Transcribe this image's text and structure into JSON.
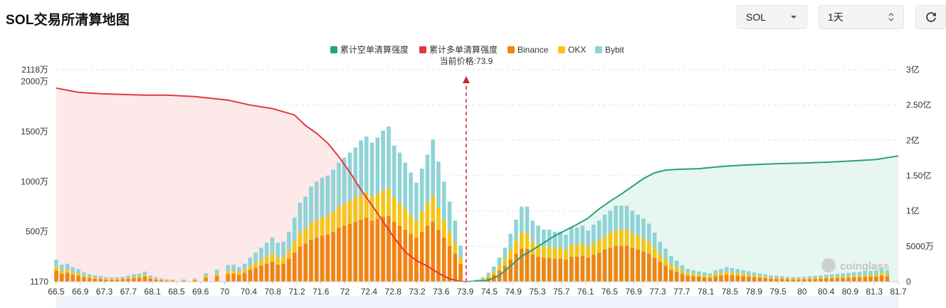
{
  "header": {
    "title": "SOL交易所清算地图",
    "coin_select": "SOL",
    "period_select": "1天"
  },
  "icons": {
    "caret": "caret-down-icon",
    "updown": "updown-icon",
    "refresh": "refresh-icon"
  },
  "colors": {
    "short_cum": "#26a17b",
    "long_cum": "#e0393e",
    "binance": "#f0850f",
    "okx": "#f5c518",
    "bybit": "#8fd3d6",
    "price_marker": "#d0232a"
  },
  "chart_data": {
    "type": "bar",
    "title": "",
    "current_price_label": "当前价格:73.9",
    "current_price": 73.9,
    "legend": [
      "累计空单清算强度",
      "累计多单清算强度",
      "Binance",
      "OKX",
      "Bybit"
    ],
    "x_tick_labels": [
      "66.5",
      "66.9",
      "67.3",
      "67.7",
      "68.1",
      "68.5",
      "69.6",
      "70",
      "70.4",
      "70.8",
      "71.2",
      "71.6",
      "72",
      "72.4",
      "72.8",
      "73.2",
      "73.6",
      "73.9",
      "74.5",
      "74.9",
      "75.3",
      "75.7",
      "76.1",
      "76.5",
      "76.9",
      "77.3",
      "77.7",
      "78.1",
      "78.5",
      "78.9",
      "79.5",
      "80",
      "80.4",
      "80.9",
      "81.3",
      "81.7"
    ],
    "left_axis": {
      "ticks": [
        "1170",
        "500万",
        "1000万",
        "1500万",
        "2000万",
        "2118万"
      ],
      "range": [
        1170,
        21180000
      ]
    },
    "right_axis": {
      "ticks": [
        "0",
        "5000万",
        "1亿",
        "1.50亿",
        "2亿",
        "2.50亿",
        "3亿"
      ],
      "range": [
        0,
        300000000
      ]
    },
    "watermark": "coinglass",
    "long_cumulative_curve": {
      "name": "累计多单清算强度",
      "x": [
        66.5,
        66.9,
        67.3,
        67.7,
        68.1,
        68.5,
        69.0,
        69.6,
        70.0,
        70.4,
        70.8,
        71.0,
        71.2,
        71.4,
        71.6,
        71.8,
        72.0,
        72.2,
        72.4,
        72.6,
        72.8,
        73.0,
        73.2,
        73.4,
        73.6,
        73.8,
        73.9
      ],
      "y": [
        274000000.0,
        268000000.0,
        266000000.0,
        265000000.0,
        264000000.0,
        264000000.0,
        262000000.0,
        257000000.0,
        250000000.0,
        245000000.0,
        236000000.0,
        221000000.0,
        210000000.0,
        196000000.0,
        177000000.0,
        155000000.0,
        130000000.0,
        108000000.0,
        85000000.0,
        62000000.0,
        42000000.0,
        30000000.0,
        22000000.0,
        12000000.0,
        4000000.0,
        500000.0,
        0
      ]
    },
    "short_cumulative_curve": {
      "name": "累计空单清算强度",
      "x": [
        73.9,
        74.3,
        74.5,
        74.7,
        74.9,
        75.1,
        75.3,
        75.5,
        75.7,
        75.9,
        76.1,
        76.3,
        76.5,
        76.7,
        76.9,
        77.1,
        77.3,
        77.5,
        77.7,
        78.1,
        78.5,
        78.9,
        79.5,
        80.0,
        80.4,
        80.9,
        81.3,
        81.7
      ],
      "y": [
        0,
        2000000.0,
        9000000.0,
        22000000.0,
        36000000.0,
        45000000.0,
        55000000.0,
        65000000.0,
        73000000.0,
        81000000.0,
        90000000.0,
        103000000.0,
        114000000.0,
        124000000.0,
        135000000.0,
        146000000.0,
        154000000.0,
        158000000.0,
        159000000.0,
        160000000.0,
        163000000.0,
        165000000.0,
        167000000.0,
        168000000.0,
        169000000.0,
        171000000.0,
        173000000.0,
        178000000.0
      ]
    },
    "bars": {
      "note_units": "total liquidation per price level (left axis), split by exchange",
      "x": [
        66.5,
        66.6,
        66.7,
        66.8,
        66.9,
        67.0,
        67.1,
        67.2,
        67.3,
        67.4,
        67.5,
        67.6,
        67.7,
        67.8,
        67.9,
        68.0,
        68.1,
        68.2,
        68.3,
        68.4,
        68.5,
        68.6,
        68.8,
        69.0,
        69.2,
        69.4,
        69.6,
        69.7,
        69.8,
        69.9,
        70.0,
        70.1,
        70.2,
        70.3,
        70.4,
        70.5,
        70.6,
        70.7,
        70.8,
        70.9,
        71.0,
        71.1,
        71.2,
        71.3,
        71.4,
        71.5,
        71.6,
        71.7,
        71.8,
        71.9,
        72.0,
        72.1,
        72.2,
        72.3,
        72.4,
        72.5,
        72.6,
        72.7,
        72.8,
        72.9,
        73.0,
        73.1,
        73.2,
        73.3,
        73.4,
        73.5,
        73.6,
        73.7,
        73.8,
        73.9,
        74.0,
        74.1,
        74.2,
        74.3,
        74.4,
        74.5,
        74.6,
        74.7,
        74.8,
        74.9,
        75.0,
        75.1,
        75.2,
        75.3,
        75.4,
        75.5,
        75.6,
        75.7,
        75.8,
        75.9,
        76.0,
        76.1,
        76.2,
        76.3,
        76.4,
        76.5,
        76.6,
        76.7,
        76.8,
        76.9,
        77.0,
        77.1,
        77.2,
        77.3,
        77.4,
        77.5,
        77.6,
        77.7,
        77.8,
        77.9,
        78.0,
        78.1,
        78.2,
        78.3,
        78.4,
        78.5,
        78.6,
        78.7,
        78.8,
        78.9,
        79.0,
        79.1,
        79.2,
        79.3,
        79.4,
        79.5,
        79.6,
        79.7,
        79.8,
        79.9,
        80.0,
        80.1,
        80.2,
        80.3,
        80.4,
        80.5,
        80.6,
        80.7,
        80.8,
        80.9,
        81.0,
        81.1,
        81.2,
        81.3,
        81.4,
        81.5,
        81.6,
        81.7
      ],
      "binance": [
        110,
        80,
        90,
        70,
        60,
        45,
        35,
        30,
        25,
        20,
        20,
        20,
        25,
        30,
        35,
        40,
        50,
        30,
        20,
        15,
        10,
        10,
        10,
        15,
        40,
        60,
        75,
        80,
        70,
        90,
        120,
        140,
        160,
        180,
        200,
        170,
        180,
        230,
        290,
        350,
        380,
        420,
        440,
        460,
        470,
        500,
        540,
        560,
        580,
        600,
        620,
        640,
        610,
        630,
        650,
        660,
        600,
        560,
        520,
        480,
        440,
        500,
        560,
        600,
        520,
        440,
        360,
        280,
        180,
        0,
        0,
        10,
        20,
        40,
        70,
        110,
        160,
        220,
        280,
        330,
        330,
        270,
        250,
        240,
        240,
        230,
        230,
        220,
        250,
        250,
        260,
        240,
        270,
        290,
        320,
        340,
        360,
        360,
        360,
        340,
        320,
        300,
        280,
        240,
        200,
        160,
        120,
        100,
        80,
        60,
        55,
        50,
        45,
        40,
        55,
        60,
        70,
        65,
        60,
        55,
        50,
        45,
        40,
        35,
        30,
        28,
        26,
        24,
        22,
        22,
        24,
        26,
        28,
        30,
        32,
        34,
        36,
        38,
        40,
        42,
        44,
        46,
        48,
        50,
        60,
        50
      ],
      "okx": [
        40,
        30,
        30,
        25,
        25,
        20,
        15,
        15,
        10,
        10,
        10,
        10,
        10,
        10,
        15,
        15,
        20,
        12,
        10,
        8,
        5,
        5,
        5,
        8,
        15,
        20,
        30,
        30,
        25,
        30,
        40,
        50,
        60,
        70,
        80,
        70,
        70,
        90,
        120,
        140,
        150,
        170,
        180,
        180,
        190,
        200,
        210,
        220,
        230,
        240,
        250,
        250,
        240,
        250,
        260,
        270,
        240,
        230,
        210,
        190,
        170,
        200,
        230,
        260,
        220,
        180,
        140,
        110,
        60,
        0,
        0,
        5,
        10,
        20,
        30,
        50,
        70,
        100,
        130,
        160,
        160,
        130,
        120,
        110,
        110,
        110,
        110,
        100,
        120,
        120,
        120,
        110,
        120,
        130,
        140,
        150,
        160,
        160,
        160,
        150,
        140,
        130,
        120,
        100,
        80,
        70,
        55,
        45,
        35,
        28,
        25,
        22,
        20,
        18,
        25,
        28,
        32,
        30,
        28,
        25,
        22,
        20,
        18,
        16,
        14,
        13,
        12,
        11,
        10,
        10,
        11,
        12,
        13,
        14,
        15,
        16,
        17,
        18,
        19,
        20,
        21,
        22,
        23,
        24,
        28,
        24
      ],
      "bybit": [
        70,
        60,
        60,
        50,
        40,
        30,
        25,
        20,
        20,
        15,
        15,
        15,
        15,
        20,
        25,
        25,
        30,
        20,
        15,
        10,
        8,
        8,
        8,
        10,
        30,
        40,
        60,
        60,
        50,
        60,
        80,
        100,
        120,
        140,
        160,
        150,
        150,
        180,
        230,
        300,
        320,
        360,
        380,
        400,
        400,
        420,
        440,
        460,
        480,
        500,
        540,
        560,
        540,
        560,
        600,
        620,
        520,
        500,
        460,
        420,
        380,
        430,
        480,
        560,
        460,
        380,
        300,
        220,
        120,
        0,
        0,
        8,
        15,
        30,
        50,
        80,
        110,
        160,
        210,
        260,
        260,
        210,
        190,
        170,
        170,
        160,
        160,
        150,
        170,
        170,
        180,
        160,
        180,
        190,
        210,
        220,
        240,
        240,
        240,
        220,
        210,
        200,
        180,
        150,
        120,
        100,
        80,
        65,
        50,
        40,
        35,
        30,
        28,
        25,
        35,
        38,
        44,
        40,
        38,
        35,
        32,
        28,
        25,
        22,
        20,
        18,
        16,
        15,
        14,
        14,
        15,
        16,
        18,
        20,
        22,
        24,
        26,
        28,
        30,
        32,
        34,
        36,
        38,
        40,
        48,
        40
      ]
    }
  }
}
